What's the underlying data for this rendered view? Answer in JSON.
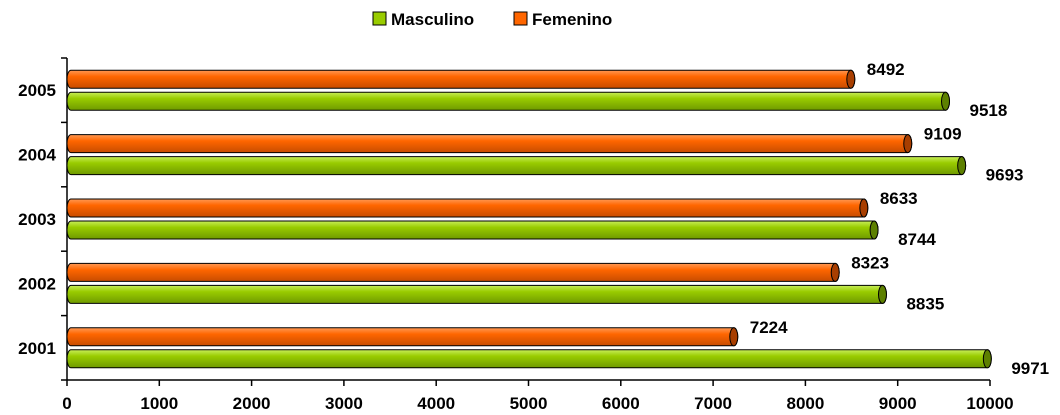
{
  "chart_data": {
    "type": "bar",
    "orientation": "horizontal",
    "style": "3d-cylinder",
    "categories": [
      "2001",
      "2002",
      "2003",
      "2004",
      "2005"
    ],
    "series": [
      {
        "name": "Masculino",
        "values": [
          9971,
          8835,
          8744,
          9693,
          9518
        ],
        "color": "#99CC00"
      },
      {
        "name": "Femenino",
        "values": [
          7224,
          8323,
          8633,
          9109,
          8492
        ],
        "color": "#FF6600"
      }
    ],
    "xlim": [
      0,
      10000
    ],
    "x_ticks": [
      "0",
      "1000",
      "2000",
      "3000",
      "4000",
      "5000",
      "6000",
      "7000",
      "8000",
      "9000",
      "10000"
    ],
    "legend_position": "top",
    "grid": false
  }
}
